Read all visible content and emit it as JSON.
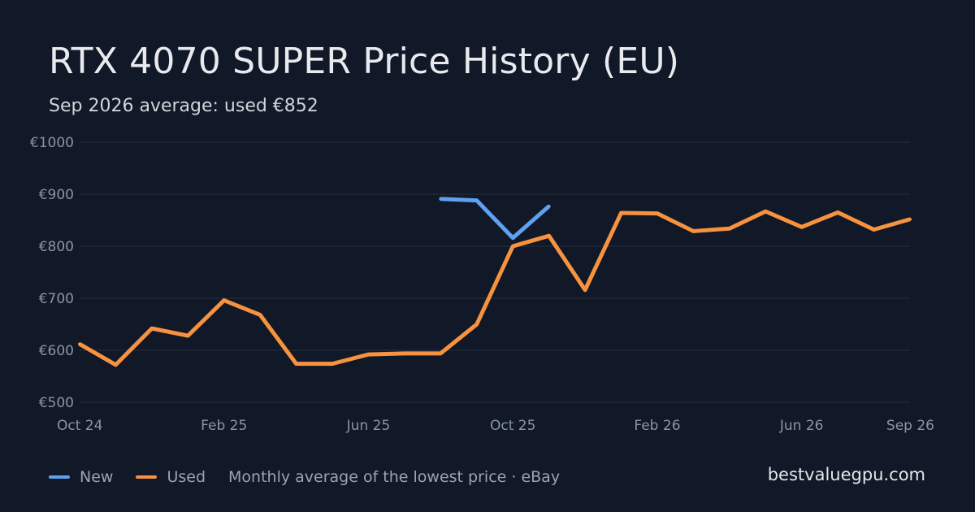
{
  "header": {
    "title": "RTX 4070 SUPER Price History (EU)",
    "subtitle": "Sep 2026 average: used €852"
  },
  "legend": {
    "note": "Monthly average of the lowest price · eBay"
  },
  "brand": "bestvaluegpu.com",
  "colors": {
    "background": "#111827",
    "grid": "#263041",
    "new": "#5ea1f0",
    "used": "#f7923f"
  },
  "chart_data": {
    "type": "line",
    "title": "RTX 4070 SUPER Price History (EU)",
    "subtitle": "Sep 2026 average: used €852",
    "x": [
      "Oct 24",
      "Nov 24",
      "Dec 24",
      "Jan 25",
      "Feb 25",
      "Mar 25",
      "Apr 25",
      "May 25",
      "Jun 25",
      "Jul 25",
      "Aug 25",
      "Sep 25",
      "Oct 25",
      "Nov 25",
      "Dec 25",
      "Jan 26",
      "Feb 26",
      "Mar 26",
      "Apr 26",
      "May 26",
      "Jun 26",
      "Jul 26",
      "Aug 26",
      "Sep 26"
    ],
    "x_tick_labels": [
      {
        "index": 0,
        "label": "Oct 24"
      },
      {
        "index": 4,
        "label": "Feb 25"
      },
      {
        "index": 8,
        "label": "Jun 25"
      },
      {
        "index": 12,
        "label": "Oct 25"
      },
      {
        "index": 16,
        "label": "Feb 26"
      },
      {
        "index": 20,
        "label": "Jun 26"
      },
      {
        "index": 23,
        "label": "Sep 26"
      }
    ],
    "y_ticks": [
      500,
      600,
      700,
      800,
      900,
      1000
    ],
    "y_tick_labels": [
      "€500",
      "€600",
      "€700",
      "€800",
      "€900",
      "€1000"
    ],
    "ylim": [
      500,
      1000
    ],
    "grid": true,
    "legend_position": "bottom-left",
    "series": [
      {
        "name": "New",
        "color": "#5ea1f0",
        "values": [
          null,
          null,
          null,
          null,
          null,
          null,
          null,
          null,
          null,
          null,
          891,
          888,
          816,
          877,
          null,
          null,
          null,
          null,
          null,
          null,
          null,
          null,
          null,
          null
        ]
      },
      {
        "name": "Used",
        "color": "#f7923f",
        "values": [
          612,
          572,
          642,
          628,
          696,
          668,
          574,
          574,
          592,
          594,
          594,
          650,
          800,
          820,
          716,
          864,
          863,
          829,
          834,
          867,
          837,
          865,
          832,
          852
        ]
      }
    ]
  }
}
